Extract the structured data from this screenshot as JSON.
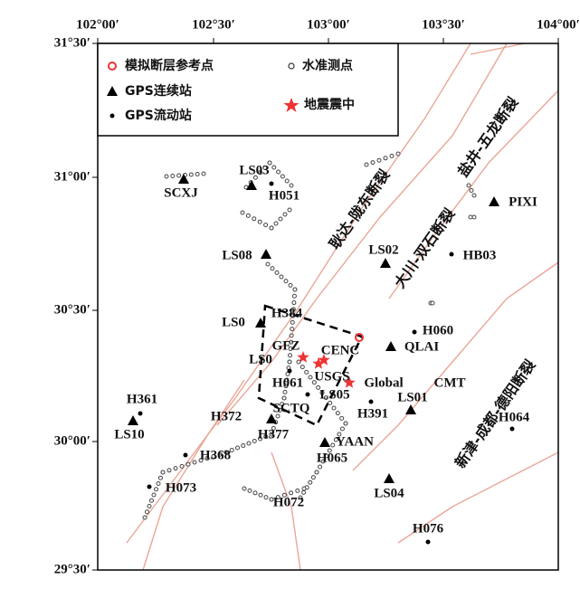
{
  "map": {
    "lon_labels": [
      "102°00′",
      "102°30′",
      "103°00′",
      "103°30′",
      "104°00′"
    ],
    "lat_labels": [
      "31°30′",
      "31°00′",
      "30°30′",
      "30°00′",
      "29°30′"
    ],
    "legend": [
      "模拟断层参考点",
      "水准测点",
      "GPS连续站",
      "地震震中",
      "GPS流动站"
    ],
    "faults": [
      "耿达-陇东断裂",
      "盐井-五龙断裂",
      "大川-双石断裂",
      "新津-成都-德阳断裂"
    ],
    "labels": [
      "LS03",
      "SCXJ",
      "H051",
      "LS08",
      "LS02",
      "HB03",
      "PIXI",
      "H384",
      "LS0",
      "H060",
      "QLAI",
      "GFZ",
      "CENC",
      "LS0",
      "USGS",
      "Global",
      "CMT",
      "H061",
      "LS05",
      "LS01",
      "H391",
      "H361",
      "H372",
      "SCTQ",
      "LS10",
      "H377",
      "YAAN",
      "H064",
      "H368",
      "H065",
      "H073",
      "LS04",
      "H072",
      "H076"
    ]
  }
}
